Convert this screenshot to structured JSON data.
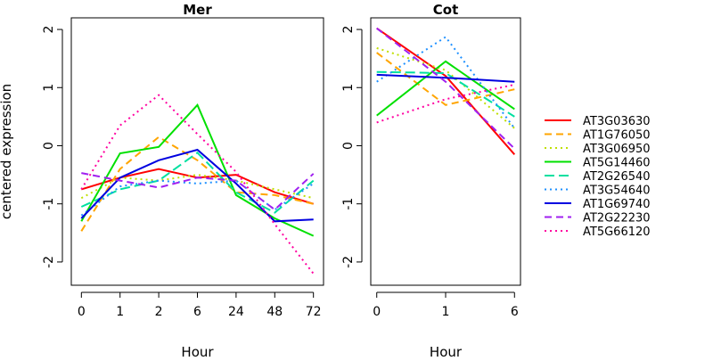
{
  "chart_data": [
    {
      "type": "line",
      "title": "Mer",
      "xlabel": "Hour",
      "ylabel": "centered expression",
      "categories": [
        "0",
        "1",
        "2",
        "6",
        "24",
        "48",
        "72"
      ],
      "ylim": [
        -2.4,
        2.2
      ],
      "yticks": [
        "-2",
        "-1",
        "0",
        "1",
        "2"
      ],
      "series": [
        {
          "name": "AT3G03630",
          "color": "#ff0000",
          "dash": "solid",
          "values": [
            -0.75,
            -0.55,
            -0.4,
            -0.55,
            -0.5,
            -0.8,
            -1.0
          ]
        },
        {
          "name": "AT1G76050",
          "color": "#ffa500",
          "dash": "dashed",
          "values": [
            -1.47,
            -0.4,
            0.15,
            -0.25,
            -0.8,
            -0.85,
            -1.0
          ]
        },
        {
          "name": "AT3G06950",
          "color": "#bfdf00",
          "dash": "dotted",
          "values": [
            -0.9,
            -0.55,
            -0.6,
            -0.5,
            -0.6,
            -0.75,
            -0.9
          ]
        },
        {
          "name": "AT5G14460",
          "color": "#00e000",
          "dash": "solid",
          "values": [
            -1.3,
            -0.13,
            -0.02,
            0.7,
            -0.85,
            -1.25,
            -1.55
          ]
        },
        {
          "name": "AT2G26540",
          "color": "#00e0a0",
          "dash": "longdash",
          "values": [
            -1.05,
            -0.75,
            -0.6,
            -0.12,
            -0.8,
            -1.15,
            -0.6
          ]
        },
        {
          "name": "AT3G54640",
          "color": "#1e90ff",
          "dash": "dotted",
          "values": [
            -1.2,
            -0.7,
            -0.6,
            -0.65,
            -0.6,
            -1.1,
            -0.65
          ]
        },
        {
          "name": "AT1G69740",
          "color": "#0000e0",
          "dash": "solid",
          "values": [
            -1.25,
            -0.55,
            -0.25,
            -0.07,
            -0.65,
            -1.3,
            -1.27
          ]
        },
        {
          "name": "AT2G22230",
          "color": "#a020f0",
          "dash": "dashed",
          "values": [
            -0.47,
            -0.6,
            -0.72,
            -0.55,
            -0.6,
            -1.1,
            -0.48
          ]
        },
        {
          "name": "AT5G66120",
          "color": "#ff00a0",
          "dash": "dotted",
          "values": [
            -0.75,
            0.35,
            0.87,
            0.2,
            -0.45,
            -1.35,
            -2.2
          ]
        }
      ]
    },
    {
      "type": "line",
      "title": "Cot",
      "xlabel": "Hour",
      "categories": [
        "0",
        "1",
        "6"
      ],
      "ylim": [
        -2.4,
        2.2
      ],
      "yticks": [
        "-2",
        "-1",
        "0",
        "1",
        "2"
      ],
      "series": [
        {
          "name": "AT3G03630",
          "color": "#ff0000",
          "dash": "solid",
          "values": [
            2.02,
            1.2,
            -0.15
          ]
        },
        {
          "name": "AT1G76050",
          "color": "#ffa500",
          "dash": "dashed",
          "values": [
            1.6,
            0.7,
            0.97
          ]
        },
        {
          "name": "AT3G06950",
          "color": "#bfdf00",
          "dash": "dotted",
          "values": [
            1.68,
            1.3,
            0.3
          ]
        },
        {
          "name": "AT5G14460",
          "color": "#00e000",
          "dash": "solid",
          "values": [
            0.52,
            1.45,
            0.63
          ]
        },
        {
          "name": "AT2G26540",
          "color": "#00e0a0",
          "dash": "longdash",
          "values": [
            1.27,
            1.25,
            0.5
          ]
        },
        {
          "name": "AT3G54640",
          "color": "#1e90ff",
          "dash": "dotted",
          "values": [
            1.1,
            1.87,
            0.3
          ]
        },
        {
          "name": "AT1G69740",
          "color": "#0000e0",
          "dash": "solid",
          "values": [
            1.22,
            1.17,
            1.1
          ]
        },
        {
          "name": "AT2G22230",
          "color": "#a020f0",
          "dash": "dashed",
          "values": [
            2.02,
            1.1,
            -0.05
          ]
        },
        {
          "name": "AT5G66120",
          "color": "#ff00a0",
          "dash": "dotted",
          "values": [
            0.4,
            0.8,
            1.05
          ]
        }
      ]
    }
  ]
}
